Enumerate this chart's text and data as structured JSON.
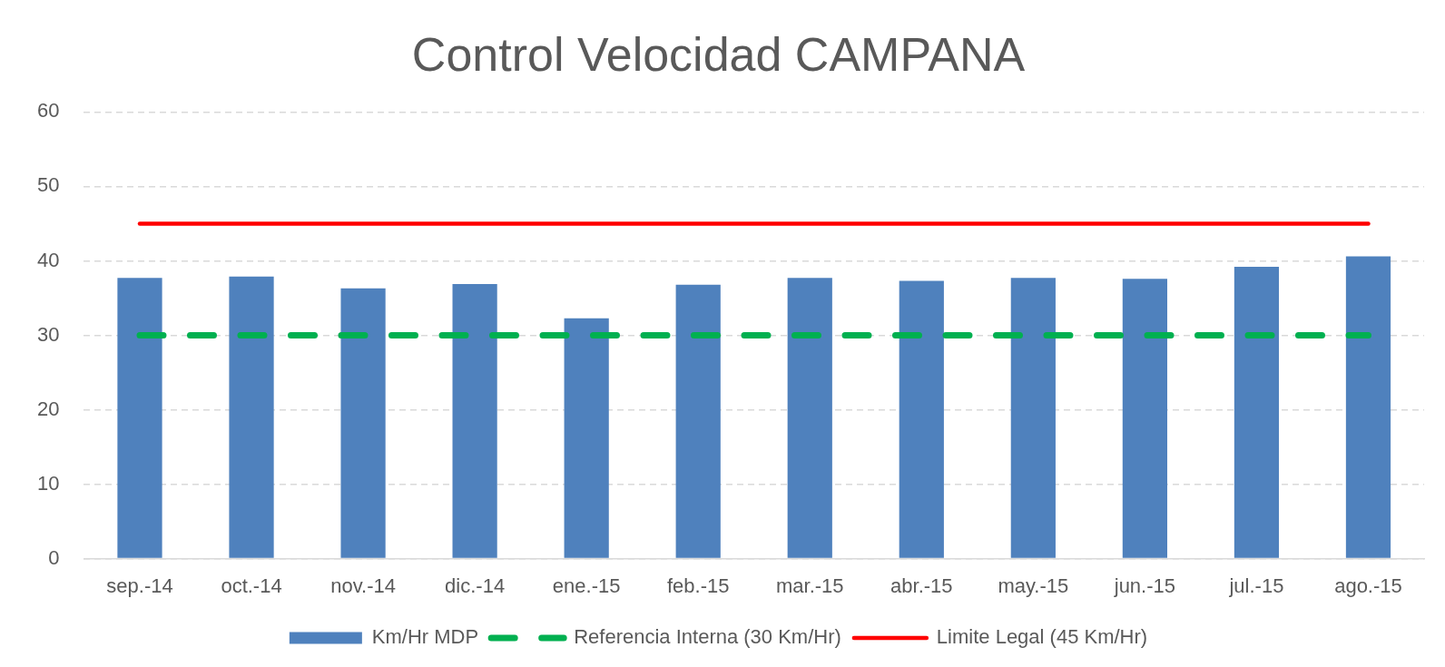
{
  "chart_data": {
    "type": "bar",
    "title": "Control Velocidad CAMPANA",
    "categories": [
      "sep.-14",
      "oct.-14",
      "nov.-14",
      "dic.-14",
      "ene.-15",
      "feb.-15",
      "mar.-15",
      "abr.-15",
      "may.-15",
      "jun.-15",
      "jul.-15",
      "ago.-15"
    ],
    "series": [
      {
        "name": "Km/Hr MDP",
        "color": "#4f81bd",
        "values": [
          37.7,
          37.9,
          36.3,
          36.9,
          32.3,
          36.8,
          37.7,
          37.3,
          37.7,
          37.6,
          39.2,
          40.6
        ]
      },
      {
        "name": "Referencia Interna (30 Km/Hr)",
        "type": "line",
        "line_style": "dashed",
        "color": "#00b050",
        "values": [
          30,
          30,
          30,
          30,
          30,
          30,
          30,
          30,
          30,
          30,
          30,
          30
        ]
      },
      {
        "name": "Limite Legal (45 Km/Hr)",
        "type": "line",
        "line_style": "solid",
        "color": "#ff0000",
        "values": [
          45,
          45,
          45,
          45,
          45,
          45,
          45,
          45,
          45,
          45,
          45,
          45
        ]
      }
    ],
    "ylim": [
      0,
      60
    ],
    "yticks": [
      0,
      10,
      20,
      30,
      40,
      50,
      60
    ],
    "grid": "y",
    "legend": "bottom",
    "marker": "none"
  }
}
